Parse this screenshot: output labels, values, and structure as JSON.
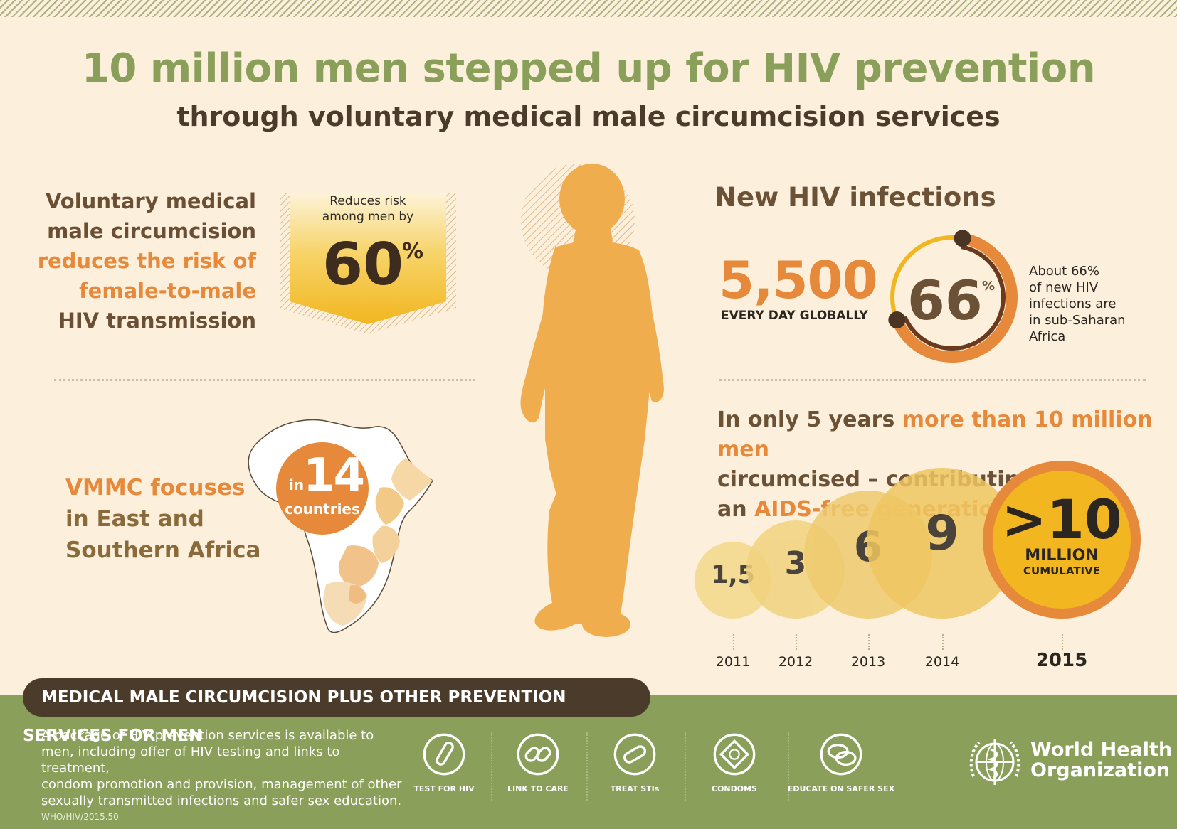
{
  "title": "10 million men stepped up for HIV prevention",
  "subtitle": "through voluntary medical male circumcision services",
  "risk_section": {
    "line1": "Voluntary medical",
    "line2": "male circumcision",
    "line3": "reduces the risk of",
    "line4": "female-to-male",
    "line5": "HIV transmission",
    "badge_label_1": "Reduces risk",
    "badge_label_2": "among men by",
    "badge_value": "60",
    "badge_unit": "%"
  },
  "africa_section": {
    "line1": "VMMC focuses",
    "line2": "in East and",
    "line3": "Southern Africa",
    "circle_prefix": "in",
    "circle_number": "14",
    "circle_label": "countries"
  },
  "infections_section": {
    "heading": "New HIV infections",
    "daily_value": "5,500",
    "daily_label": "EVERY DAY GLOBALLY",
    "share_value": "66",
    "share_unit": "%",
    "share_fraction": 0.66,
    "about_1": "About 66%",
    "about_2": "of new HIV",
    "about_3": "infections are",
    "about_4": "in sub-Saharan",
    "about_5": "Africa"
  },
  "growth_section": {
    "t1": "In only 5 years",
    "t2": "more than 10 million men",
    "t3": "circumcised – contributing to",
    "t4": "an",
    "t5": "AIDS-free generation"
  },
  "chart_data": {
    "type": "bubble",
    "categories": [
      "2011",
      "2012",
      "2013",
      "2014",
      "2015"
    ],
    "labels": [
      "1,5",
      "3",
      "6",
      "9",
      ">10"
    ],
    "values": [
      1.5,
      3,
      6,
      9,
      10
    ],
    "final_sublabel_1": "MILLION",
    "final_sublabel_2": "CUMULATIVE"
  },
  "footer": {
    "banner": "MEDICAL MALE CIRCUMCISION PLUS OTHER PREVENTION SERVICES FOR MEN",
    "package_1": "A package of HIV prevention services is available to",
    "package_2": "men, including offer of HIV testing and links to treatment,",
    "package_3": "condom promotion and provision, management of other",
    "package_4": "sexually transmitted infections and safer sex education.",
    "code": "WHO/HIV/2015.50",
    "services": [
      {
        "label": "TEST FOR HIV",
        "icon": "test-tube-icon"
      },
      {
        "label": "LINK TO CARE",
        "icon": "chain-link-icon"
      },
      {
        "label": "TREAT STIs",
        "icon": "pill-icon"
      },
      {
        "label": "CONDOMS",
        "icon": "condom-packet-icon"
      },
      {
        "label": "EDUCATE ON SAFER SEX",
        "icon": "speech-bubbles-icon"
      }
    ],
    "org_1": "World Health",
    "org_2": "Organization"
  },
  "colors": {
    "background": "#fcf0dc",
    "green": "#8aa05a",
    "orange": "#e6893a",
    "brown": "#6b5237",
    "gold": "#f2b620",
    "dark_banner": "#4a3b2b"
  }
}
